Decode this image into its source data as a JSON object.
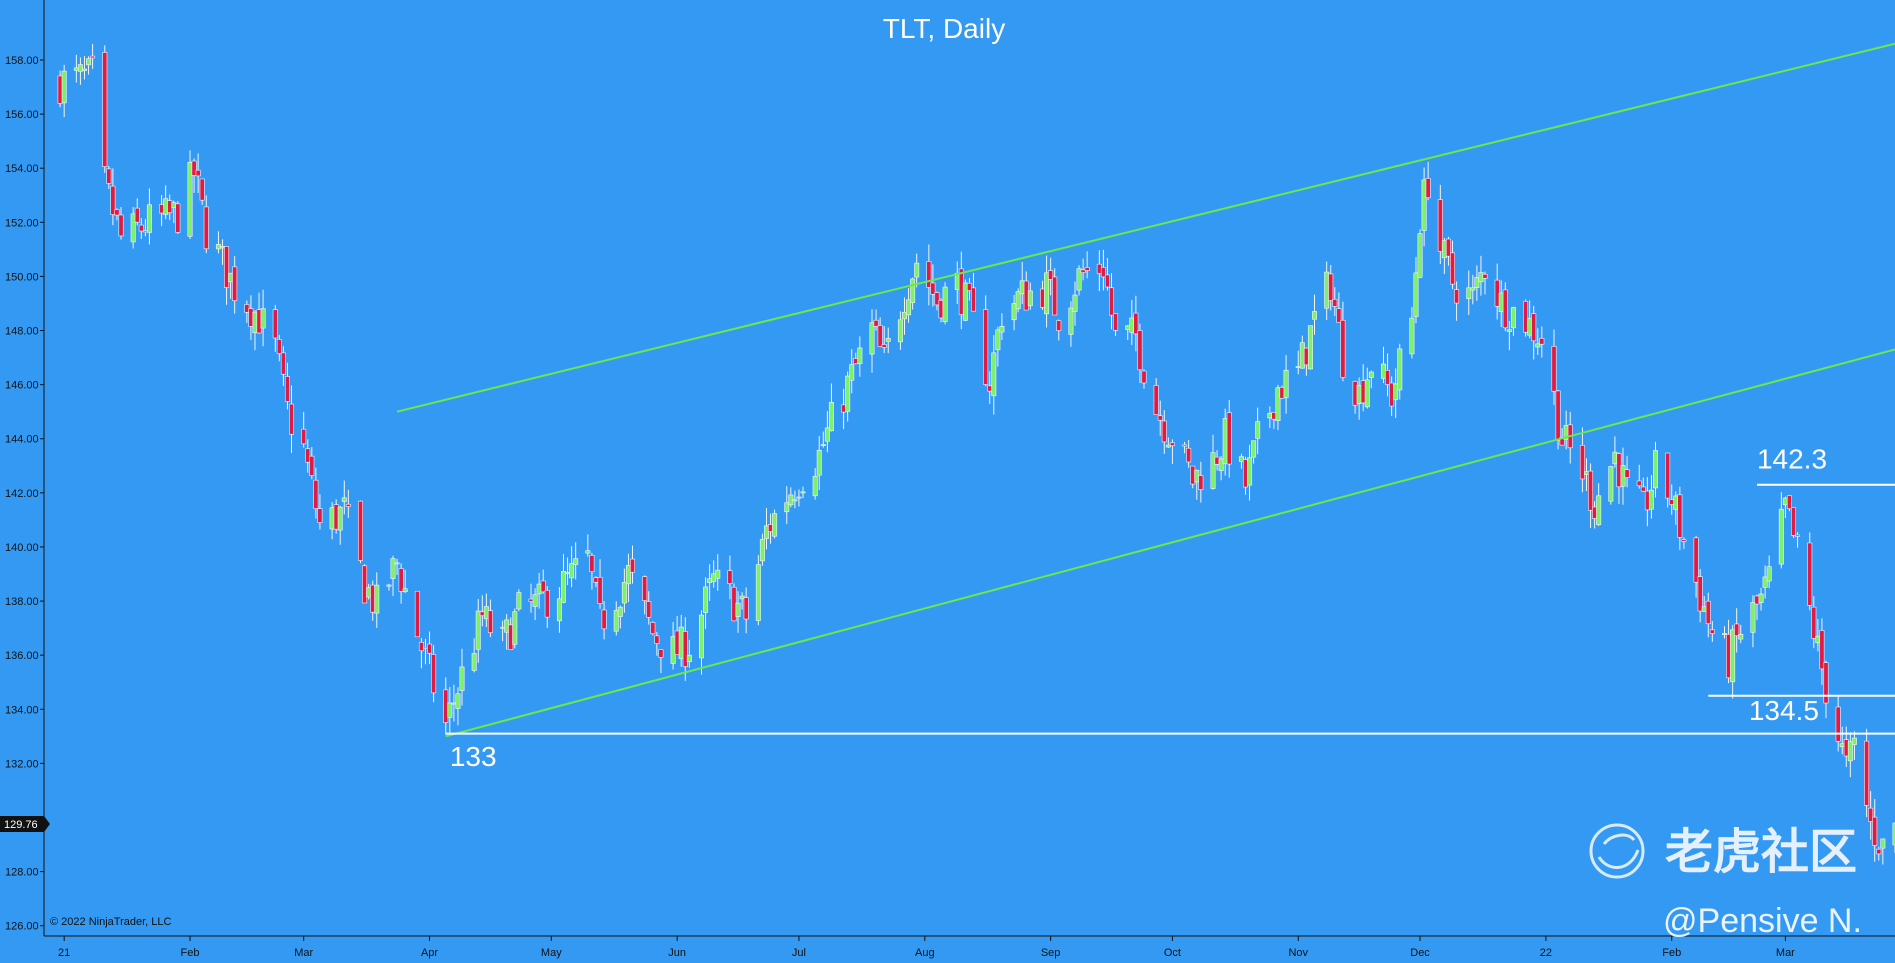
{
  "chart_data": {
    "type": "candlestick",
    "title": "TLT, Daily",
    "ylim": [
      126,
      160
    ],
    "y_ticks": [
      126,
      128,
      130,
      132,
      134,
      136,
      138,
      140,
      142,
      144,
      146,
      148,
      150,
      152,
      154,
      156,
      158
    ],
    "y_tick_labels": [
      "126.00",
      "128.00",
      "",
      "132.00",
      "134.00",
      "136.00",
      "138.00",
      "140.00",
      "142.00",
      "144.00",
      "146.00",
      "148.00",
      "150.00",
      "152.00",
      "154.00",
      "156.00",
      "158.00"
    ],
    "x_range": [
      "2020-12-29",
      "2022-03-28"
    ],
    "x_ticks": [
      {
        "date": "2021-01-01",
        "label": "21"
      },
      {
        "date": "2021-02-01",
        "label": "Feb"
      },
      {
        "date": "2021-03-01",
        "label": "Mar"
      },
      {
        "date": "2021-04-01",
        "label": "Apr"
      },
      {
        "date": "2021-05-01",
        "label": "May"
      },
      {
        "date": "2021-06-01",
        "label": "Jun"
      },
      {
        "date": "2021-07-01",
        "label": "Jul"
      },
      {
        "date": "2021-08-01",
        "label": "Aug"
      },
      {
        "date": "2021-09-01",
        "label": "Sep"
      },
      {
        "date": "2021-10-01",
        "label": "Oct"
      },
      {
        "date": "2021-11-01",
        "label": "Nov"
      },
      {
        "date": "2021-12-01",
        "label": "Dec"
      },
      {
        "date": "2022-01-01",
        "label": "22"
      },
      {
        "date": "2022-02-01",
        "label": "Feb"
      },
      {
        "date": "2022-03-01",
        "label": "Mar"
      }
    ],
    "close_path": [
      [
        "2020-12-31",
        157.2
      ],
      [
        "2021-01-08",
        157.4
      ],
      [
        "2021-01-11",
        153.4
      ],
      [
        "2021-01-15",
        151.4
      ],
      [
        "2021-01-22",
        152.0
      ],
      [
        "2021-01-29",
        152.3
      ],
      [
        "2021-02-02",
        153.8
      ],
      [
        "2021-02-05",
        151.7
      ],
      [
        "2021-02-12",
        149.6
      ],
      [
        "2021-02-18",
        148.5
      ],
      [
        "2021-02-22",
        147.3
      ],
      [
        "2021-02-25",
        145.0
      ],
      [
        "2021-03-01",
        143.6
      ],
      [
        "2021-03-05",
        140.8
      ],
      [
        "2021-03-11",
        141.3
      ],
      [
        "2021-03-16",
        138.6
      ],
      [
        "2021-03-19",
        137.8
      ],
      [
        "2021-03-24",
        139.4
      ],
      [
        "2021-03-30",
        136.3
      ],
      [
        "2021-04-05",
        133.4
      ],
      [
        "2021-04-08",
        134.8
      ],
      [
        "2021-04-14",
        137.4
      ],
      [
        "2021-04-19",
        136.4
      ],
      [
        "2021-04-23",
        137.6
      ],
      [
        "2021-04-28",
        137.9
      ],
      [
        "2021-05-04",
        138.6
      ],
      [
        "2021-05-10",
        139.5
      ],
      [
        "2021-05-13",
        137.2
      ],
      [
        "2021-05-20",
        139.0
      ],
      [
        "2021-05-26",
        136.8
      ],
      [
        "2021-05-31",
        136.1
      ],
      [
        "2021-06-04",
        136.4
      ],
      [
        "2021-06-10",
        138.7
      ],
      [
        "2021-06-15",
        138.0
      ],
      [
        "2021-06-18",
        137.4
      ],
      [
        "2021-06-23",
        140.6
      ],
      [
        "2021-06-28",
        141.9
      ],
      [
        "2021-07-01",
        142.5
      ],
      [
        "2021-07-06",
        143.4
      ],
      [
        "2021-07-09",
        144.6
      ],
      [
        "2021-07-14",
        146.3
      ],
      [
        "2021-07-19",
        148.0
      ],
      [
        "2021-07-22",
        146.8
      ],
      [
        "2021-07-27",
        149.4
      ],
      [
        "2021-07-30",
        150.6
      ],
      [
        "2021-08-04",
        149.1
      ],
      [
        "2021-08-09",
        149.7
      ],
      [
        "2021-08-12",
        148.7
      ],
      [
        "2021-08-17",
        146.1
      ],
      [
        "2021-08-20",
        148.7
      ],
      [
        "2021-08-25",
        149.3
      ],
      [
        "2021-08-31",
        149.6
      ],
      [
        "2021-09-03",
        148.6
      ],
      [
        "2021-09-08",
        150.0
      ],
      [
        "2021-09-14",
        150.4
      ],
      [
        "2021-09-17",
        147.7
      ],
      [
        "2021-09-22",
        147.8
      ],
      [
        "2021-09-27",
        145.1
      ],
      [
        "2021-10-01",
        144.1
      ],
      [
        "2021-10-06",
        142.5
      ],
      [
        "2021-10-11",
        143.2
      ],
      [
        "2021-10-14",
        144.0
      ],
      [
        "2021-10-19",
        142.3
      ],
      [
        "2021-10-22",
        143.9
      ],
      [
        "2021-10-27",
        145.9
      ],
      [
        "2021-11-01",
        146.4
      ],
      [
        "2021-11-05",
        148.4
      ],
      [
        "2021-11-09",
        149.8
      ],
      [
        "2021-11-12",
        147.0
      ],
      [
        "2021-11-16",
        145.7
      ],
      [
        "2021-11-19",
        146.8
      ],
      [
        "2021-11-24",
        145.6
      ],
      [
        "2021-11-29",
        148.4
      ],
      [
        "2021-12-01",
        152.2
      ],
      [
        "2021-12-03",
        153.6
      ],
      [
        "2021-12-06",
        151.0
      ],
      [
        "2021-12-09",
        149.8
      ],
      [
        "2021-12-14",
        149.2
      ],
      [
        "2021-12-17",
        150.4
      ],
      [
        "2021-12-21",
        149.0
      ],
      [
        "2021-12-27",
        148.4
      ],
      [
        "2021-12-31",
        147.7
      ],
      [
        "2022-01-05",
        144.0
      ],
      [
        "2022-01-10",
        142.8
      ],
      [
        "2022-01-13",
        141.6
      ],
      [
        "2022-01-18",
        143.4
      ],
      [
        "2022-01-21",
        142.0
      ],
      [
        "2022-01-25",
        141.3
      ],
      [
        "2022-01-28",
        142.8
      ],
      [
        "2022-02-01",
        141.8
      ],
      [
        "2022-02-04",
        140.2
      ],
      [
        "2022-02-08",
        138.2
      ],
      [
        "2022-02-11",
        136.8
      ],
      [
        "2022-02-15",
        135.8
      ],
      [
        "2022-02-18",
        136.9
      ],
      [
        "2022-02-23",
        138.0
      ],
      [
        "2022-02-25",
        138.8
      ],
      [
        "2022-03-01",
        141.4
      ],
      [
        "2022-03-04",
        139.8
      ],
      [
        "2022-03-08",
        136.9
      ],
      [
        "2022-03-11",
        134.8
      ],
      [
        "2022-03-14",
        133.0
      ],
      [
        "2022-03-16",
        131.8
      ],
      [
        "2022-03-18",
        132.6
      ],
      [
        "2022-03-22",
        129.7
      ],
      [
        "2022-03-25",
        128.9
      ],
      [
        "2022-03-28",
        129.8
      ]
    ],
    "current_price": "129.76",
    "trendlines": [
      {
        "name": "upper-channel",
        "from": {
          "date": "2021-03-24",
          "price": 145.0
        },
        "to": {
          "date": "2022-03-28",
          "price": 158.6
        }
      },
      {
        "name": "lower-channel",
        "from": {
          "date": "2021-04-05",
          "price": 133.0
        },
        "to": {
          "date": "2022-03-28",
          "price": 147.3
        }
      },
      {
        "name": "support-133",
        "from": {
          "date": "2021-04-05",
          "price": 133.1
        },
        "to": {
          "date": "2022-03-28",
          "price": 133.1
        }
      },
      {
        "name": "resistance-142.3",
        "from": {
          "date": "2022-02-22",
          "price": 142.3
        },
        "to": {
          "date": "2022-03-28",
          "price": 142.3
        }
      },
      {
        "name": "level-134.5",
        "from": {
          "date": "2022-02-10",
          "price": 134.5
        },
        "to": {
          "date": "2022-03-28",
          "price": 134.5
        }
      }
    ],
    "annotations": [
      {
        "text": "133",
        "date": "2021-04-06",
        "price": 131.9
      },
      {
        "text": "142.3",
        "date": "2022-02-22",
        "price": 142.9
      },
      {
        "text": "134.5",
        "date": "2022-02-20",
        "price": 133.6
      }
    ],
    "colors": {
      "background": "#3399f3",
      "up_candle": "#7ef06a",
      "down_candle": "#e01a40",
      "wick": "#f2f4ff",
      "channel": "#6be84a",
      "level": "#ffffff"
    }
  },
  "copyright": "© 2022 NinjaTrader, LLC",
  "watermark": {
    "site": "老虎社区",
    "user": "@Pensive N."
  }
}
